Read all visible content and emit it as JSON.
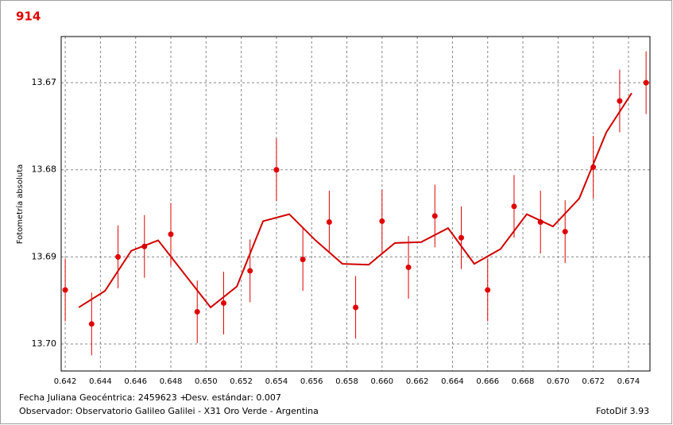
{
  "chart_data": {
    "type": "scatter",
    "title": "914",
    "y_label": "Fotometría absoluta",
    "xlim": [
      0.64177,
      0.67522
    ],
    "ylim": [
      13.6647,
      13.7031
    ],
    "y_inverted": true,
    "grid": true,
    "xticks": [
      0.642,
      0.644,
      0.646,
      0.648,
      0.65,
      0.652,
      0.654,
      0.656,
      0.658,
      0.66,
      0.662,
      0.664,
      0.666,
      0.668,
      0.67,
      0.672,
      0.674
    ],
    "xtick_labels": [
      "0.642",
      "0.644",
      "0.646",
      "0.648",
      "0.650",
      "0.652",
      "0.654",
      "0.656",
      "0.658",
      "0.660",
      "0.662",
      "0.664",
      "0.666",
      "0.668",
      "0.670",
      "0.672",
      "0.674"
    ],
    "yticks": [
      13.67,
      13.68,
      13.69,
      {
        "value": 13.7,
        "label": "13.70"
      }
    ],
    "series": [
      {
        "type": "scatter",
        "color": "#e00000",
        "x": [
          0.642,
          0.6435,
          0.645,
          0.6465,
          0.648,
          0.6495,
          0.651,
          0.6525,
          0.654,
          0.6555,
          0.657,
          0.6585,
          0.66,
          0.6615,
          0.663,
          0.6645,
          0.666,
          0.6675,
          0.669,
          0.6704,
          0.672,
          0.6735,
          0.675
        ],
        "values": [
          13.6938,
          13.6977,
          13.69,
          13.6888,
          13.6874,
          13.6963,
          13.6953,
          13.6916,
          13.68,
          13.6903,
          13.686,
          13.6958,
          13.6859,
          13.6912,
          13.6853,
          13.6878,
          13.6938,
          13.6842,
          13.686,
          13.6871,
          13.6797,
          13.6721,
          13.67
        ],
        "errors": [
          0.0036,
          0.0036,
          0.0036,
          0.0036,
          0.0036,
          0.0036,
          0.0036,
          0.0036,
          0.0036,
          0.0036,
          0.0036,
          0.0036,
          0.0036,
          0.0036,
          0.0036,
          0.0036,
          0.0036,
          0.0036,
          0.0036,
          0.0036,
          0.0036,
          0.0036,
          0.0036
        ]
      },
      {
        "type": "line",
        "color": "#d00000",
        "x": [
          0.64277,
          0.64426,
          0.64575,
          0.64728,
          0.65026,
          0.65175,
          0.65324,
          0.65473,
          0.65622,
          0.65775,
          0.65924,
          0.66073,
          0.66222,
          0.66375,
          0.66524,
          0.66673,
          0.66822,
          0.66971,
          0.6712,
          0.67274,
          0.67418
        ],
        "values": [
          13.6958,
          13.6939,
          13.6893,
          13.6881,
          13.6958,
          13.6934,
          13.6859,
          13.6851,
          13.6881,
          13.6908,
          13.6909,
          13.6884,
          13.6883,
          13.6867,
          13.6908,
          13.6891,
          13.6851,
          13.6865,
          13.6833,
          13.6757,
          13.6712
        ]
      }
    ]
  },
  "footer": {
    "date_label": "Fecha Juliana Geocéntrica: 2459623 +",
    "std_label": "Desv. estándar: 0.007",
    "observer": "Observador: Observatorio Galileo Galilei - X31 Oro Verde - Argentina",
    "software": "FotoDif 3.93"
  }
}
